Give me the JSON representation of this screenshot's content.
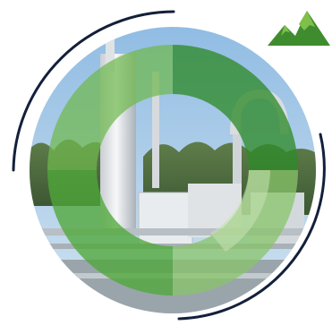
{
  "graphic": {
    "subject": "industrial-plant-photo",
    "overlay": "green-ring-segments",
    "logo": "mountain-logo-icon"
  },
  "colors": {
    "sky": "#a9cbe6",
    "ground": "#9aa5ab",
    "ring_dark": "#2f8a2a",
    "ring_mid": "#4fa83a",
    "ring_light": "#88c46a",
    "ring_pale": "#c8e2b4",
    "arc_navy": "#13203b",
    "logo_dark": "#3f8c2f",
    "logo_light": "#7fbf4a"
  }
}
